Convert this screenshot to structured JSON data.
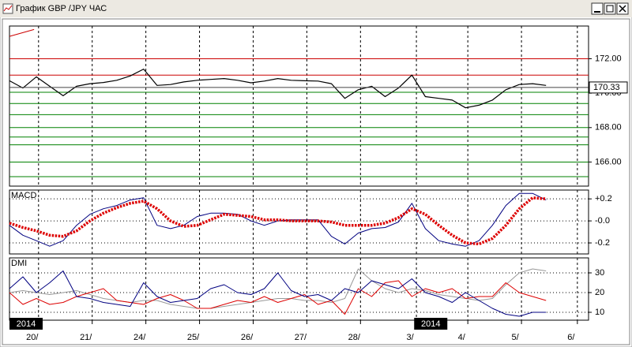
{
  "window_title": "График GBP /JPY ЧАС",
  "year_markers": [
    {
      "x": 0,
      "label": "2014"
    },
    {
      "x": 181,
      "label": "2014"
    }
  ],
  "chart_data": [
    {
      "type": "line",
      "x": [
        0,
        6,
        12,
        18,
        24,
        30,
        36,
        42,
        48,
        54,
        60,
        66,
        72,
        78,
        84,
        90,
        96,
        102,
        108,
        114,
        120,
        126,
        132,
        138,
        144,
        150,
        156,
        162,
        168,
        174,
        180,
        186,
        192,
        198,
        204,
        210,
        216,
        222,
        228,
        234,
        240
      ],
      "xlim": [
        0,
        259
      ],
      "xticks": [
        {
          "value": 13,
          "label": "20/"
        },
        {
          "value": 37,
          "label": "21/"
        },
        {
          "value": 61,
          "label": "24/"
        },
        {
          "value": 85,
          "label": "25/"
        },
        {
          "value": 109,
          "label": "26/"
        },
        {
          "value": 133,
          "label": "27/"
        },
        {
          "value": 157,
          "label": "28/"
        },
        {
          "value": 182,
          "label": "3/"
        },
        {
          "value": 205,
          "label": "4/"
        },
        {
          "value": 229,
          "label": "5/"
        },
        {
          "value": 254,
          "label": "6/"
        }
      ],
      "ylim": [
        164.6,
        173.9
      ],
      "yticks": [
        {
          "value": 166,
          "label": "166.00"
        },
        {
          "value": 168,
          "label": "168.00"
        },
        {
          "value": 170,
          "label": "170.00"
        },
        {
          "value": 172,
          "label": "172.00"
        }
      ],
      "grid": false,
      "series": [
        {
          "color": "#000000",
          "values": [
            170.72,
            170.3,
            170.95,
            170.4,
            169.85,
            170.4,
            170.55,
            170.62,
            170.75,
            171.0,
            171.4,
            170.45,
            170.5,
            170.65,
            170.75,
            170.8,
            170.85,
            170.75,
            170.6,
            170.7,
            170.85,
            170.75,
            170.72,
            170.7,
            170.55,
            169.7,
            170.2,
            170.4,
            169.8,
            170.3,
            171.05,
            169.8,
            169.7,
            169.6,
            169.15,
            169.3,
            169.6,
            170.2,
            170.5,
            170.55,
            170.45
          ]
        }
      ],
      "resistance_levels": [
        172.0,
        171.05
      ],
      "resistance_color": "#cc0000",
      "support_levels": [
        170.05,
        169.4,
        168.75,
        168.0,
        167.45,
        167.0,
        166.0,
        165.15
      ],
      "support_color": "#008000",
      "last_value": 170.33,
      "trendline": {
        "x": [
          0,
          11
        ],
        "y": [
          173.3,
          173.7
        ],
        "color": "#cc0000"
      }
    },
    {
      "type": "line",
      "title": "MACD",
      "x": [
        0,
        6,
        12,
        18,
        24,
        30,
        36,
        42,
        48,
        54,
        60,
        66,
        72,
        78,
        84,
        90,
        96,
        102,
        108,
        114,
        120,
        126,
        132,
        138,
        144,
        150,
        156,
        162,
        168,
        174,
        180,
        186,
        192,
        198,
        204,
        210,
        216,
        222,
        228,
        234,
        240
      ],
      "ylim": [
        -0.3,
        0.28
      ],
      "yticks": [
        {
          "value": 0.2,
          "label": "+0.2"
        },
        {
          "value": 0,
          "label": "-0.0"
        },
        {
          "value": -0.2,
          "label": "-0.2"
        }
      ],
      "grid": true,
      "series": [
        {
          "color": "#000080",
          "width": 1,
          "values": [
            -0.04,
            -0.13,
            -0.18,
            -0.23,
            -0.18,
            -0.04,
            0.06,
            0.11,
            0.14,
            0.19,
            0.21,
            -0.04,
            -0.07,
            -0.04,
            0.04,
            0.07,
            0.07,
            0.06,
            0,
            -0.04,
            0,
            0.01,
            0.01,
            0.01,
            -0.14,
            -0.21,
            -0.11,
            -0.07,
            -0.06,
            -0.01,
            0.16,
            -0.07,
            -0.18,
            -0.21,
            -0.23,
            -0.18,
            -0.04,
            0.14,
            0.25,
            0.25,
            0.19
          ]
        },
        {
          "color": "#dd0000",
          "width": 3.5,
          "dotted": true,
          "values": [
            -0.02,
            -0.06,
            -0.09,
            -0.13,
            -0.14,
            -0.09,
            0.0,
            0.07,
            0.12,
            0.16,
            0.18,
            0.11,
            0.0,
            -0.05,
            -0.04,
            0.01,
            0.06,
            0.05,
            0.04,
            0.01,
            0.01,
            0,
            0,
            0,
            -0.01,
            -0.04,
            -0.04,
            -0.04,
            -0.02,
            0.03,
            0.11,
            0.06,
            -0.04,
            -0.13,
            -0.2,
            -0.21,
            -0.16,
            -0.04,
            0.11,
            0.21,
            0.2
          ]
        }
      ]
    },
    {
      "type": "line",
      "title": "DMI",
      "x": [
        0,
        6,
        12,
        18,
        24,
        30,
        36,
        42,
        48,
        54,
        60,
        66,
        72,
        78,
        84,
        90,
        96,
        102,
        108,
        114,
        120,
        126,
        132,
        138,
        144,
        150,
        156,
        162,
        168,
        174,
        180,
        186,
        192,
        198,
        204,
        210,
        216,
        222,
        228,
        234,
        240
      ],
      "ylim": [
        6,
        37.6
      ],
      "yticks": [
        30,
        20,
        10
      ],
      "grid": true,
      "series": [
        {
          "color": "#999999",
          "width": 1,
          "values": [
            20,
            21,
            20,
            19,
            20,
            21,
            19,
            17,
            16,
            15,
            16,
            16,
            14,
            13,
            12,
            12,
            13,
            14,
            15,
            16,
            17,
            17,
            16,
            16,
            15,
            17,
            32,
            26,
            22,
            20,
            22,
            21,
            19,
            18,
            17,
            16,
            17,
            24,
            30,
            32,
            31
          ]
        },
        {
          "color": "#dd0000",
          "width": 1,
          "values": [
            20,
            14,
            17,
            14,
            15,
            18,
            20,
            22,
            16,
            15,
            14,
            17,
            19,
            16,
            12,
            12,
            14,
            16,
            15,
            18,
            15,
            17,
            19,
            14,
            16,
            9,
            22,
            18,
            25,
            26,
            18,
            22,
            20,
            22,
            17,
            18,
            18,
            25,
            20,
            18,
            16
          ]
        },
        {
          "color": "#000080",
          "width": 1,
          "values": [
            22,
            28,
            20,
            25,
            31,
            18,
            17,
            15,
            14,
            13,
            25,
            18,
            15,
            16,
            17,
            22,
            24,
            20,
            19,
            22,
            30,
            21,
            18,
            19,
            16,
            22,
            20,
            26,
            24,
            22,
            27,
            20,
            18,
            15,
            20,
            16,
            12,
            9,
            8,
            10,
            10
          ]
        }
      ]
    }
  ]
}
